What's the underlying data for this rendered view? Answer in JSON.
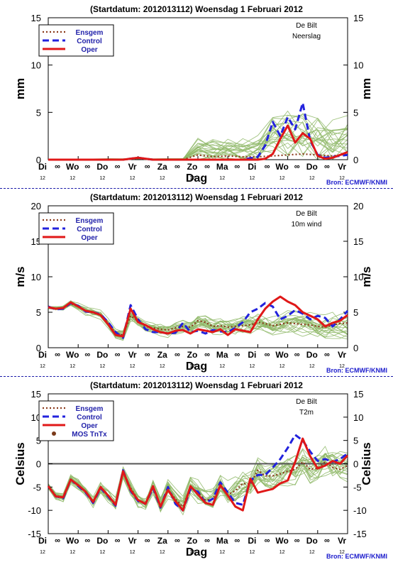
{
  "colors": {
    "ensgem": "#8b3a1c",
    "control": "#2222dd",
    "oper": "#e01818",
    "members": "#8fb868",
    "axis": "#000000",
    "source": "#1a1acc",
    "mos": "#7a3a1a"
  },
  "x_axis": {
    "label": "Dag",
    "day_labels": [
      "Di",
      "Wo",
      "Do",
      "Vr",
      "Za",
      "Zo",
      "Ma",
      "Di",
      "Wo",
      "Do",
      "Vr"
    ],
    "minor_labels": [
      "12",
      "12",
      "12",
      "12",
      "12",
      "12",
      "12",
      "12",
      "12",
      "12",
      "12"
    ],
    "intermediate_tick_glyph": "∞"
  },
  "source_label": "Bron: ECMWF/KNMI",
  "chart_data": [
    {
      "type": "line",
      "title": "(Startdatum: 2012013112)   Woensdag   1 Februari  2012",
      "location": "De Bilt",
      "variable": "Neerslag",
      "ylabel": "mm",
      "ylim": [
        0,
        15
      ],
      "yticks": [
        0,
        5,
        10,
        15
      ],
      "xlim": [
        0,
        10
      ],
      "legend": [
        "Ensgem",
        "Control",
        "Oper"
      ],
      "legend_position": "top-left",
      "series": [
        {
          "name": "Ensgem",
          "x": [
            0,
            0.5,
            1,
            1.5,
            2,
            2.5,
            3,
            3.5,
            4,
            4.5,
            5,
            5.5,
            6,
            6.5,
            7,
            7.5,
            8,
            8.5,
            9,
            9.5,
            10
          ],
          "values": [
            0,
            0,
            0,
            0,
            0,
            0,
            0.1,
            0,
            0,
            0,
            0.5,
            0.3,
            0.4,
            0.3,
            0.3,
            0.4,
            0.5,
            0.6,
            0.5,
            0.4,
            0.6
          ]
        },
        {
          "name": "Control",
          "x": [
            0,
            0.5,
            1,
            1.5,
            2,
            2.5,
            3,
            3.5,
            4,
            4.5,
            5,
            5.25,
            5.5,
            5.75,
            6,
            6.5,
            7,
            7.25,
            7.5,
            7.75,
            8,
            8.25,
            8.5,
            8.75,
            9,
            9.25,
            9.5,
            9.75,
            10
          ],
          "values": [
            0,
            0,
            0,
            0,
            0,
            0,
            0.2,
            0,
            0,
            0,
            0,
            0,
            0,
            0,
            0,
            0,
            0.3,
            1.5,
            4.0,
            2.5,
            4.5,
            3.2,
            6.0,
            2.0,
            0.5,
            0.2,
            0.3,
            0.4,
            0.5
          ]
        },
        {
          "name": "Oper",
          "x": [
            0,
            0.5,
            1,
            1.5,
            2,
            2.5,
            3,
            3.5,
            4,
            4.5,
            5,
            5.5,
            6,
            6.5,
            7,
            7.25,
            7.5,
            7.75,
            8,
            8.25,
            8.5,
            8.75,
            9,
            9.25,
            9.5,
            9.75,
            10
          ],
          "values": [
            0,
            0,
            0,
            0,
            0,
            0,
            0.2,
            0,
            0,
            0,
            0,
            0,
            0,
            0,
            0,
            0.1,
            0.6,
            2.2,
            3.6,
            1.8,
            2.8,
            2.2,
            0.4,
            0.1,
            0.2,
            0.5,
            0.8
          ]
        }
      ]
    },
    {
      "type": "line",
      "title": "(Startdatum: 2012013112)   Woensdag   1 Februari  2012",
      "location": "De Bilt",
      "variable": "10m wind",
      "ylabel": "m/s",
      "ylim": [
        0,
        20
      ],
      "yticks": [
        0,
        5,
        10,
        15,
        20
      ],
      "xlim": [
        0,
        10
      ],
      "legend": [
        "Ensgem",
        "Control",
        "Oper"
      ],
      "legend_position": "top-left",
      "series": [
        {
          "name": "Ensgem",
          "x": [
            0,
            0.25,
            0.5,
            0.75,
            1,
            1.25,
            1.5,
            1.75,
            2,
            2.25,
            2.5,
            2.75,
            3,
            3.25,
            3.5,
            3.75,
            4,
            4.25,
            4.5,
            4.75,
            5,
            5.25,
            5.5,
            5.75,
            6,
            6.25,
            6.5,
            6.75,
            7,
            7.25,
            7.5,
            7.75,
            8,
            8.25,
            8.5,
            8.75,
            9,
            9.25,
            9.5,
            9.75,
            10
          ],
          "values": [
            5.7,
            5.5,
            5.6,
            6.2,
            5.8,
            5.2,
            4.9,
            4.6,
            3.5,
            2.0,
            1.8,
            4.5,
            3.8,
            3.0,
            2.8,
            2.6,
            2.5,
            2.8,
            3.0,
            2.9,
            3.8,
            3.6,
            3.0,
            3.1,
            2.9,
            3.0,
            3.1,
            3.2,
            3.6,
            3.4,
            3.1,
            3.3,
            3.5,
            3.4,
            3.3,
            3.2,
            3.0,
            2.9,
            3.2,
            3.4,
            3.5
          ]
        },
        {
          "name": "Control",
          "x": [
            0,
            0.25,
            0.5,
            0.75,
            1,
            1.25,
            1.5,
            1.75,
            2,
            2.25,
            2.5,
            2.75,
            3,
            3.25,
            3.5,
            3.75,
            4,
            4.25,
            4.5,
            4.75,
            5,
            5.25,
            5.5,
            5.75,
            6,
            6.25,
            6.5,
            6.75,
            7,
            7.25,
            7.5,
            7.75,
            8,
            8.25,
            8.5,
            8.75,
            9,
            9.25,
            9.5,
            9.75,
            10
          ],
          "values": [
            5.8,
            5.4,
            5.5,
            6.3,
            5.9,
            5.1,
            5.0,
            4.7,
            3.6,
            2.2,
            1.4,
            6.0,
            4.0,
            2.6,
            2.2,
            2.2,
            2.0,
            2.1,
            3.5,
            2.2,
            2.4,
            2.0,
            2.5,
            2.3,
            2.2,
            2.8,
            3.6,
            5.0,
            5.5,
            6.3,
            5.8,
            4.0,
            4.5,
            5.3,
            4.8,
            4.0,
            4.5,
            4.2,
            3.0,
            4.0,
            5.2
          ]
        },
        {
          "name": "Oper",
          "x": [
            0,
            0.25,
            0.5,
            0.75,
            1,
            1.25,
            1.5,
            1.75,
            2,
            2.25,
            2.5,
            2.75,
            3,
            3.25,
            3.5,
            3.75,
            4,
            4.25,
            4.5,
            4.75,
            5,
            5.25,
            5.5,
            5.75,
            6,
            6.25,
            6.5,
            6.75,
            7,
            7.25,
            7.5,
            7.75,
            8,
            8.25,
            8.5,
            8.75,
            9,
            9.25,
            9.5,
            9.75,
            10
          ],
          "values": [
            5.7,
            5.5,
            5.6,
            6.4,
            5.8,
            5.2,
            5.0,
            4.6,
            3.3,
            1.8,
            1.6,
            5.5,
            3.6,
            3.2,
            2.6,
            2.2,
            2.0,
            2.4,
            2.5,
            2.0,
            2.6,
            2.4,
            2.2,
            2.6,
            1.8,
            2.6,
            2.4,
            2.2,
            4.0,
            5.5,
            6.5,
            7.2,
            6.5,
            6.0,
            5.0,
            4.5,
            4.0,
            3.0,
            3.5,
            3.8,
            4.6
          ]
        }
      ]
    },
    {
      "type": "line",
      "title": "(Startdatum: 2012013112)   Woensdag   1 Februari  2012",
      "location": "De Bilt",
      "variable": "T2m",
      "ylabel": "Celsius",
      "ylim": [
        -15,
        15
      ],
      "yticks": [
        -15,
        -10,
        -5,
        0,
        5,
        10,
        15
      ],
      "xlim": [
        0,
        10
      ],
      "legend": [
        "Ensgem",
        "Control",
        "Oper",
        "MOS TnTx"
      ],
      "legend_position": "top-left",
      "series": [
        {
          "name": "Ensgem",
          "x": [
            0,
            0.25,
            0.5,
            0.75,
            1,
            1.25,
            1.5,
            1.75,
            2,
            2.25,
            2.5,
            2.75,
            3,
            3.25,
            3.5,
            3.75,
            4,
            4.25,
            4.5,
            4.75,
            5,
            5.25,
            5.5,
            5.75,
            6,
            6.25,
            6.5,
            6.75,
            7,
            7.25,
            7.5,
            7.75,
            8,
            8.25,
            8.5,
            8.75,
            9,
            9.25,
            9.5,
            9.75,
            10
          ],
          "values": [
            -4.8,
            -6.8,
            -7.3,
            -3.5,
            -4.6,
            -6.0,
            -8.2,
            -5.3,
            -6.8,
            -8.6,
            -2.0,
            -5.2,
            -7.8,
            -8.4,
            -4.8,
            -9.0,
            -5.5,
            -7.6,
            -9.2,
            -5.0,
            -6.2,
            -7.8,
            -7.6,
            -4.6,
            -6.6,
            -5.8,
            -4.2,
            -4.4,
            -1.4,
            -2.6,
            -2.6,
            -2.2,
            -1.6,
            -1.2,
            0.4,
            -1.2,
            -1.0,
            0.4,
            -0.8,
            -1.2,
            -0.4
          ]
        },
        {
          "name": "Control",
          "x": [
            0,
            0.25,
            0.5,
            0.75,
            1,
            1.25,
            1.5,
            1.75,
            2,
            2.25,
            2.5,
            2.75,
            3,
            3.25,
            3.5,
            3.75,
            4,
            4.25,
            4.5,
            4.75,
            5,
            5.25,
            5.5,
            5.75,
            6,
            6.25,
            6.5,
            6.75,
            7,
            7.25,
            7.5,
            7.75,
            8,
            8.25,
            8.5,
            8.75,
            9,
            9.25,
            9.5,
            9.75,
            10
          ],
          "values": [
            -4.8,
            -7.0,
            -7.4,
            -3.4,
            -4.8,
            -6.2,
            -8.4,
            -5.2,
            -7.0,
            -9.0,
            -1.4,
            -5.8,
            -8.0,
            -8.6,
            -5.2,
            -9.4,
            -5.0,
            -8.6,
            -10.0,
            -5.4,
            -6.0,
            -8.4,
            -7.5,
            -4.0,
            -6.2,
            -8.4,
            -8.8,
            -3.6,
            -2.4,
            -2.4,
            -0.8,
            1.0,
            3.4,
            6.2,
            5.0,
            2.6,
            0.6,
            1.0,
            0.4,
            1.0,
            2.2
          ]
        },
        {
          "name": "Oper",
          "x": [
            0,
            0.25,
            0.5,
            0.75,
            1,
            1.25,
            1.5,
            1.75,
            2,
            2.25,
            2.5,
            2.75,
            3,
            3.25,
            3.5,
            3.75,
            4,
            4.25,
            4.5,
            4.75,
            5,
            5.25,
            5.5,
            5.75,
            6,
            6.25,
            6.5,
            6.75,
            7,
            7.25,
            7.5,
            7.75,
            8,
            8.25,
            8.5,
            8.75,
            9,
            9.25,
            9.5,
            9.75,
            10
          ],
          "values": [
            -4.8,
            -7.0,
            -7.2,
            -3.4,
            -4.6,
            -6.0,
            -8.2,
            -5.0,
            -6.8,
            -8.8,
            -1.6,
            -5.6,
            -7.8,
            -8.6,
            -4.8,
            -9.2,
            -5.6,
            -8.0,
            -10.0,
            -4.8,
            -6.6,
            -8.4,
            -8.8,
            -4.6,
            -6.8,
            -9.2,
            -10.0,
            -3.2,
            -6.2,
            -5.8,
            -5.4,
            -4.2,
            -3.6,
            0.4,
            5.4,
            1.6,
            -1.0,
            -0.4,
            0.6,
            0.0,
            1.8
          ]
        }
      ]
    }
  ]
}
